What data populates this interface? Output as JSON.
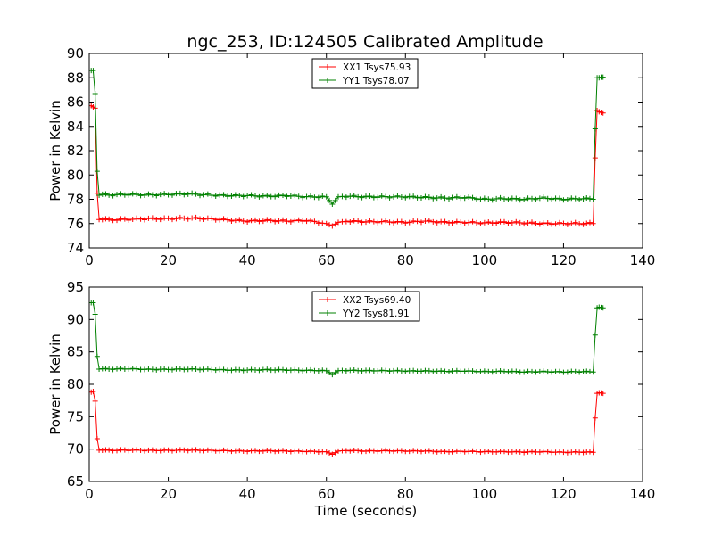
{
  "figure": {
    "title": "ngc_253, ID:124505 Calibrated Amplitude",
    "xlabel": "Time (seconds)"
  },
  "chart_data": [
    {
      "type": "line",
      "ylabel": "Power in Kelvin",
      "xlim": [
        0,
        140
      ],
      "ylim": [
        74,
        90
      ],
      "xticks": [
        0,
        20,
        40,
        60,
        80,
        100,
        120,
        140
      ],
      "yticks": [
        74,
        76,
        78,
        80,
        82,
        84,
        86,
        88,
        90
      ],
      "grid": false,
      "legend": "top-center",
      "series": [
        {
          "name": "XX1 Tsys75.93",
          "color": "#ff0000",
          "marker": "+",
          "x": [
            0.5,
            1.0,
            1.5,
            2.0,
            2.5,
            5,
            10,
            15,
            20,
            25,
            30,
            35,
            40,
            45,
            50,
            55,
            60,
            61.5,
            63,
            65,
            70,
            75,
            80,
            85,
            90,
            95,
            100,
            105,
            110,
            115,
            120,
            125,
            127.5,
            128,
            128.5,
            129,
            129.5,
            130
          ],
          "y": [
            85.7,
            85.6,
            85.5,
            78.5,
            76.4,
            76.3,
            76.35,
            76.4,
            76.4,
            76.45,
            76.4,
            76.3,
            76.2,
            76.25,
            76.2,
            76.25,
            76.0,
            75.8,
            76.1,
            76.2,
            76.15,
            76.15,
            76.1,
            76.2,
            76.1,
            76.1,
            76.05,
            76.1,
            76.05,
            76.0,
            76.0,
            76.0,
            76.0,
            81.4,
            85.3,
            85.2,
            85.15,
            85.1
          ]
        },
        {
          "name": "YY1 Tsys78.07",
          "color": "#008000",
          "marker": "+",
          "x": [
            0.5,
            1.0,
            1.5,
            2.0,
            2.5,
            5,
            10,
            15,
            20,
            25,
            30,
            35,
            40,
            45,
            50,
            55,
            60,
            61.5,
            63,
            65,
            70,
            75,
            80,
            85,
            90,
            95,
            100,
            105,
            110,
            115,
            120,
            125,
            127.5,
            128,
            128.5,
            129,
            129.5,
            130
          ],
          "y": [
            88.6,
            88.6,
            86.7,
            80.3,
            78.4,
            78.35,
            78.4,
            78.35,
            78.4,
            78.45,
            78.35,
            78.3,
            78.3,
            78.25,
            78.3,
            78.2,
            78.2,
            77.6,
            78.2,
            78.25,
            78.2,
            78.2,
            78.2,
            78.15,
            78.1,
            78.15,
            78.0,
            78.05,
            78.0,
            78.1,
            78.0,
            78.05,
            78.0,
            83.8,
            88.0,
            88.0,
            88.05,
            88.05
          ]
        }
      ]
    },
    {
      "type": "line",
      "ylabel": "Power in Kelvin",
      "xlim": [
        0,
        140
      ],
      "ylim": [
        65,
        95
      ],
      "xticks": [
        0,
        20,
        40,
        60,
        80,
        100,
        120,
        140
      ],
      "yticks": [
        65,
        70,
        75,
        80,
        85,
        90,
        95
      ],
      "grid": false,
      "legend": "top-center",
      "series": [
        {
          "name": "XX2 Tsys69.40",
          "color": "#ff0000",
          "marker": "+",
          "x": [
            0.5,
            1.0,
            1.5,
            2.0,
            2.5,
            5,
            10,
            15,
            20,
            25,
            30,
            35,
            40,
            45,
            50,
            55,
            60,
            61.5,
            63,
            65,
            70,
            75,
            80,
            85,
            90,
            95,
            100,
            105,
            110,
            115,
            120,
            125,
            127.5,
            128,
            128.5,
            129,
            129.5,
            130
          ],
          "y": [
            78.8,
            78.9,
            77.4,
            71.6,
            69.9,
            69.8,
            69.85,
            69.8,
            69.8,
            69.85,
            69.8,
            69.75,
            69.7,
            69.75,
            69.7,
            69.65,
            69.6,
            69.2,
            69.7,
            69.8,
            69.7,
            69.75,
            69.7,
            69.7,
            69.6,
            69.65,
            69.6,
            69.6,
            69.55,
            69.6,
            69.5,
            69.55,
            69.5,
            74.8,
            78.6,
            78.7,
            78.65,
            78.6
          ]
        },
        {
          "name": "YY2 Tsys81.91",
          "color": "#008000",
          "marker": "+",
          "x": [
            0.5,
            1.0,
            1.5,
            2.0,
            2.5,
            5,
            10,
            15,
            20,
            25,
            30,
            35,
            40,
            45,
            50,
            55,
            60,
            61.5,
            63,
            65,
            70,
            75,
            80,
            85,
            90,
            95,
            100,
            105,
            110,
            115,
            120,
            125,
            127.5,
            128,
            128.5,
            129,
            129.5,
            130
          ],
          "y": [
            92.6,
            92.6,
            90.8,
            84.3,
            82.4,
            82.35,
            82.4,
            82.3,
            82.3,
            82.35,
            82.3,
            82.2,
            82.2,
            82.25,
            82.2,
            82.15,
            82.1,
            81.5,
            82.1,
            82.15,
            82.1,
            82.1,
            82.05,
            82.05,
            82.0,
            82.05,
            81.95,
            82.0,
            81.9,
            81.95,
            81.9,
            81.95,
            81.9,
            87.6,
            91.8,
            91.9,
            91.85,
            91.8
          ]
        }
      ]
    }
  ]
}
